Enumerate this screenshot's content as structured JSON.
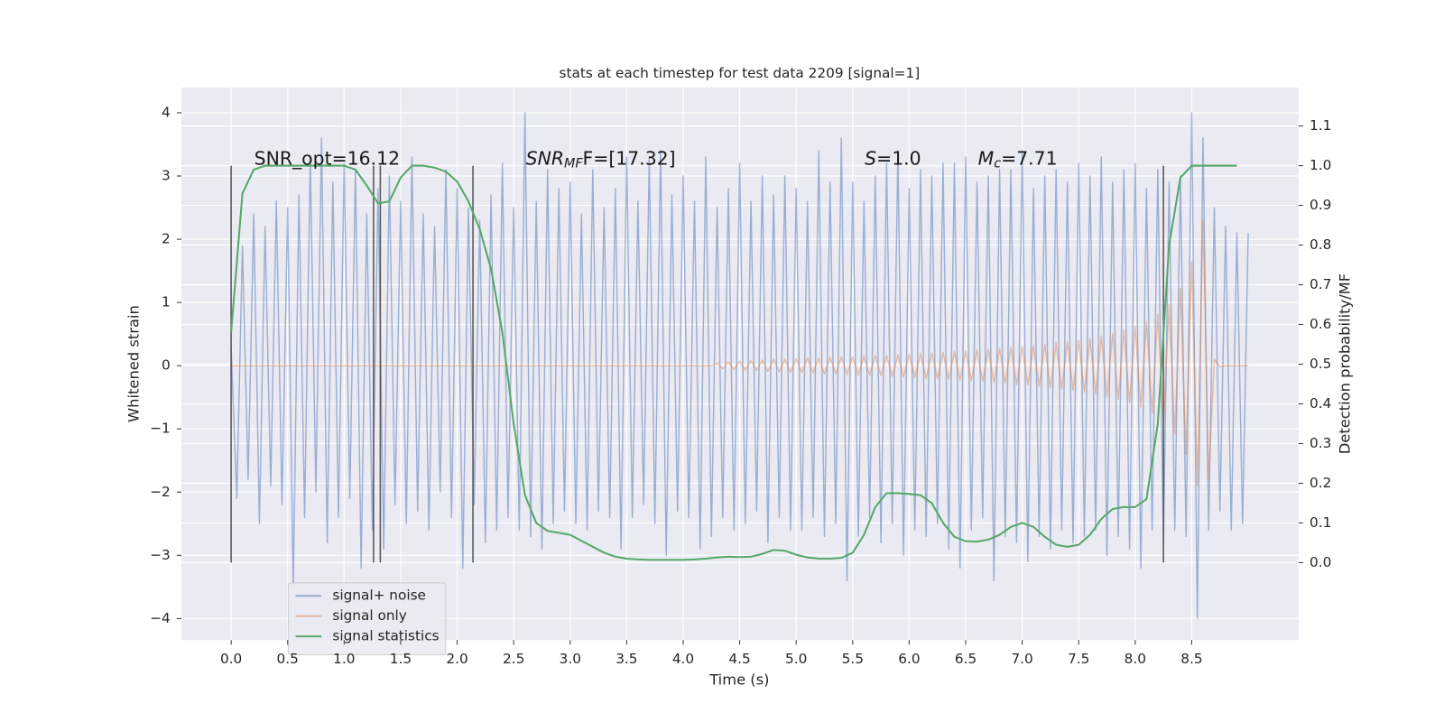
{
  "chart_data": {
    "type": "line",
    "title": "stats at each timestep for test data 2209 [signal=1]",
    "xlabel": "Time (s)",
    "ylabel": "Whitened strain",
    "y2label": "Detection probability/MF",
    "xlim": [
      -0.44,
      9.445
    ],
    "ylim": [
      -4.34,
      4.4
    ],
    "y2lim": [
      -0.195,
      1.197
    ],
    "xticks": [
      {
        "value": 0,
        "label": "0.0"
      },
      0.5,
      {
        "value": 1,
        "label": "1.0"
      },
      1.5,
      {
        "value": 2,
        "label": "2.0"
      },
      2.5,
      {
        "value": 3,
        "label": "3.0"
      },
      3.5,
      {
        "value": 4,
        "label": "4.0"
      },
      4.5,
      {
        "value": 5,
        "label": "5.0"
      },
      5.5,
      {
        "value": 6,
        "label": "6.0"
      },
      6.5,
      {
        "value": 7,
        "label": "7.0"
      },
      7.5,
      {
        "value": 8,
        "label": "8.0"
      },
      8.5
    ],
    "yticks": [
      {
        "value": -4,
        "label": "−4"
      },
      {
        "value": -3,
        "label": "−3"
      },
      {
        "value": -2,
        "label": "−2"
      },
      {
        "value": -1,
        "label": "−1"
      },
      0,
      1,
      2,
      3,
      4
    ],
    "y2ticks": [
      {
        "value": 0,
        "label": "0.0"
      },
      0.1,
      0.2,
      0.3,
      0.4,
      0.5,
      0.6,
      0.7,
      0.8,
      0.9,
      {
        "value": 1,
        "label": "1.0"
      },
      1.1
    ],
    "grid": true,
    "legend": "lower left",
    "series": [
      {
        "name": "signal+ noise",
        "color": "#4c72b0",
        "opacity": 0.5,
        "x": [
          0,
          0.05,
          0.1,
          0.15,
          0.2,
          0.25,
          0.3,
          0.35,
          0.4,
          0.45,
          0.5,
          0.55,
          0.6,
          0.65,
          0.7,
          0.75,
          0.8,
          0.85,
          0.9,
          0.95,
          1,
          1.05,
          1.1,
          1.15,
          1.2,
          1.25,
          1.3,
          1.35,
          1.4,
          1.45,
          1.5,
          1.55,
          1.6,
          1.65,
          1.7,
          1.75,
          1.8,
          1.85,
          1.9,
          1.95,
          2,
          2.05,
          2.1,
          2.15,
          2.2,
          2.25,
          2.3,
          2.35,
          2.4,
          2.45,
          2.5,
          2.55,
          2.6,
          2.65,
          2.7,
          2.75,
          2.8,
          2.85,
          2.9,
          2.95,
          3,
          3.05,
          3.1,
          3.15,
          3.2,
          3.25,
          3.3,
          3.35,
          3.4,
          3.45,
          3.5,
          3.55,
          3.6,
          3.65,
          3.7,
          3.75,
          3.8,
          3.85,
          3.9,
          3.95,
          4,
          4.05,
          4.1,
          4.15,
          4.2,
          4.25,
          4.3,
          4.35,
          4.4,
          4.45,
          4.5,
          4.55,
          4.6,
          4.65,
          4.7,
          4.75,
          4.8,
          4.85,
          4.9,
          4.95,
          5,
          5.05,
          5.1,
          5.15,
          5.2,
          5.25,
          5.3,
          5.35,
          5.4,
          5.45,
          5.5,
          5.55,
          5.6,
          5.65,
          5.7,
          5.75,
          5.8,
          5.85,
          5.9,
          5.95,
          6,
          6.05,
          6.1,
          6.15,
          6.2,
          6.25,
          6.3,
          6.35,
          6.4,
          6.45,
          6.5,
          6.55,
          6.6,
          6.65,
          6.7,
          6.75,
          6.8,
          6.85,
          6.9,
          6.95,
          7,
          7.05,
          7.1,
          7.15,
          7.2,
          7.25,
          7.3,
          7.35,
          7.4,
          7.45,
          7.5,
          7.55,
          7.6,
          7.65,
          7.7,
          7.75,
          7.8,
          7.85,
          7.9,
          7.95,
          8,
          8.05,
          8.1,
          8.15,
          8.2,
          8.25,
          8.3,
          8.35,
          8.4,
          8.45,
          8.5,
          8.55,
          8.6,
          8.65,
          8.7,
          8.75,
          8.8,
          8.85,
          8.9,
          8.95,
          9
        ],
        "values": [
          0.3,
          -2.1,
          1.9,
          -1.8,
          2.4,
          -2.5,
          2.2,
          -1.9,
          2.6,
          -2.2,
          2.5,
          -3.5,
          2.7,
          -2.4,
          3.3,
          -2.0,
          3.6,
          -2.8,
          2.9,
          -2.4,
          3.2,
          -2.1,
          3.1,
          -3.2,
          2.4,
          -2.6,
          2.8,
          -2.9,
          3.0,
          -2.2,
          2.6,
          -2.5,
          3.3,
          -2.3,
          2.4,
          -2.6,
          2.2,
          -2.0,
          3.1,
          -2.4,
          2.8,
          -3.2,
          2.5,
          -2.2,
          2.3,
          -2.8,
          2.7,
          -2.6,
          3.2,
          -2.4,
          2.5,
          -2.6,
          4.0,
          -2.7,
          2.6,
          -2.9,
          3.1,
          -2.5,
          2.8,
          -2.3,
          2.9,
          -2.5,
          2.4,
          -2.6,
          3.1,
          -2.3,
          2.5,
          -2.4,
          2.8,
          -2.9,
          3.3,
          -2.4,
          2.6,
          -2.2,
          3.3,
          -2.5,
          3.4,
          -3.0,
          2.7,
          -2.3,
          3.0,
          -2.4,
          2.6,
          -2.9,
          3.3,
          -2.7,
          2.5,
          -2.4,
          2.8,
          -2.6,
          3.2,
          -2.5,
          2.6,
          -2.3,
          3.0,
          -2.8,
          2.7,
          -2.4,
          3.0,
          -2.6,
          2.8,
          -2.6,
          2.6,
          -2.4,
          3.4,
          -2.7,
          2.9,
          -2.5,
          3.6,
          -3.4,
          2.9,
          -2.7,
          2.6,
          -2.4,
          3.0,
          -2.8,
          3.2,
          -2.5,
          3.4,
          -3.0,
          2.8,
          -2.6,
          3.1,
          -2.7,
          3.0,
          -2.5,
          3.2,
          -2.9,
          3.2,
          -3.2,
          3.3,
          -2.6,
          2.9,
          -2.4,
          3.0,
          -3.4,
          3.1,
          -2.7,
          3.1,
          -2.8,
          3.4,
          -3.1,
          2.8,
          -2.7,
          3.0,
          -2.9,
          3.1,
          -2.6,
          2.9,
          -2.8,
          3.2,
          -2.7,
          3.0,
          -2.6,
          3.3,
          -3.0,
          2.9,
          -2.7,
          3.1,
          -2.9,
          3.2,
          -3.2,
          2.8,
          -2.6,
          3.1,
          -2.8,
          2.9,
          -2.6,
          3.0,
          -2.7,
          4.0,
          -4.0,
          3.6,
          -2.6,
          2.5,
          -2.3,
          2.2,
          -2.6,
          2.1,
          -2.5,
          2.1
        ]
      },
      {
        "name": "signal only",
        "color": "#dd8452",
        "opacity": 0.5,
        "x": [
          0,
          0.05,
          0.1,
          0.15,
          0.2,
          0.25,
          0.3,
          0.35,
          0.4,
          0.45,
          0.5,
          0.55,
          0.6,
          0.65,
          0.7,
          0.75,
          0.8,
          0.85,
          0.9,
          0.95,
          1,
          1.05,
          1.1,
          1.15,
          1.2,
          1.25,
          1.3,
          1.35,
          1.4,
          1.45,
          1.5,
          1.55,
          1.6,
          1.65,
          1.7,
          1.75,
          1.8,
          1.85,
          1.9,
          1.95,
          2,
          2.05,
          2.1,
          2.15,
          2.2,
          2.25,
          2.3,
          2.35,
          2.4,
          2.45,
          2.5,
          2.55,
          2.6,
          2.65,
          2.7,
          2.75,
          2.8,
          2.85,
          2.9,
          2.95,
          3,
          3.05,
          3.1,
          3.15,
          3.2,
          3.25,
          3.3,
          3.35,
          3.4,
          3.45,
          3.5,
          3.55,
          3.6,
          3.65,
          3.7,
          3.75,
          3.8,
          3.85,
          3.9,
          3.95,
          4,
          4.05,
          4.1,
          4.15,
          4.2,
          4.25,
          4.3,
          4.35,
          4.4,
          4.45,
          4.5,
          4.55,
          4.6,
          4.65,
          4.7,
          4.75,
          4.8,
          4.85,
          4.9,
          4.95,
          5,
          5.05,
          5.1,
          5.15,
          5.2,
          5.25,
          5.3,
          5.35,
          5.4,
          5.45,
          5.5,
          5.55,
          5.6,
          5.65,
          5.7,
          5.75,
          5.8,
          5.85,
          5.9,
          5.95,
          6,
          6.05,
          6.1,
          6.15,
          6.2,
          6.25,
          6.3,
          6.35,
          6.4,
          6.45,
          6.5,
          6.55,
          6.6,
          6.65,
          6.7,
          6.75,
          6.8,
          6.85,
          6.9,
          6.95,
          7,
          7.05,
          7.1,
          7.15,
          7.2,
          7.25,
          7.3,
          7.35,
          7.4,
          7.45,
          7.5,
          7.55,
          7.6,
          7.65,
          7.7,
          7.75,
          7.8,
          7.85,
          7.9,
          7.95,
          8,
          8.05,
          8.1,
          8.15,
          8.2,
          8.25,
          8.3,
          8.35,
          8.4,
          8.45,
          8.5,
          8.55,
          8.6,
          8.65,
          8.7,
          8.75,
          8.8,
          8.85,
          8.9,
          8.95,
          9
        ],
        "values": [
          0,
          0,
          0,
          0,
          0,
          0,
          0,
          0,
          0,
          0,
          0,
          0,
          0,
          0,
          0,
          0,
          0,
          0,
          0,
          0,
          0,
          0,
          0,
          0,
          0,
          0,
          0,
          0,
          0,
          0,
          0,
          0,
          0,
          0,
          0,
          0,
          0,
          0,
          0,
          0,
          0,
          0,
          0,
          0,
          0,
          0,
          0,
          0,
          0,
          0,
          0,
          0,
          0,
          0,
          0,
          0,
          0,
          0,
          0,
          0,
          0,
          0,
          0,
          0,
          0,
          0,
          0,
          0,
          0,
          0,
          0,
          0,
          0,
          0,
          0,
          0,
          0,
          0,
          0,
          0,
          0,
          0,
          0,
          0,
          0,
          0,
          0.04,
          -0.05,
          0.06,
          -0.06,
          0.07,
          -0.07,
          0.08,
          -0.08,
          0.09,
          -0.09,
          0.1,
          -0.1,
          0.1,
          -0.11,
          0.11,
          -0.11,
          0.12,
          -0.12,
          0.12,
          -0.13,
          0.13,
          -0.13,
          0.14,
          -0.14,
          0.14,
          -0.15,
          0.15,
          -0.15,
          0.16,
          -0.16,
          0.16,
          -0.17,
          0.17,
          -0.18,
          0.18,
          -0.19,
          0.19,
          -0.2,
          0.2,
          -0.21,
          0.21,
          -0.22,
          0.22,
          -0.23,
          0.23,
          -0.24,
          0.25,
          -0.25,
          0.26,
          -0.27,
          0.27,
          -0.28,
          0.29,
          -0.3,
          0.3,
          -0.31,
          0.32,
          -0.33,
          0.34,
          -0.35,
          0.36,
          -0.37,
          0.38,
          -0.39,
          0.4,
          -0.42,
          0.43,
          -0.45,
          0.47,
          -0.49,
          0.51,
          -0.53,
          0.56,
          -0.59,
          0.62,
          -0.66,
          0.7,
          -0.75,
          0.81,
          -0.88,
          0.97,
          -1.08,
          1.22,
          -1.4,
          1.65,
          -1.9,
          2.3,
          -1.8,
          0.1,
          -0.02,
          0,
          0,
          0,
          0,
          0
        ]
      },
      {
        "name": "signal statistics",
        "color": "#55a868",
        "opacity": 1,
        "axis": "y2",
        "x": [
          0,
          0.1,
          0.2,
          0.3,
          0.4,
          0.5,
          0.6,
          0.7,
          0.8,
          0.9,
          1,
          1.1,
          1.2,
          1.3,
          1.4,
          1.5,
          1.6,
          1.7,
          1.8,
          1.9,
          2,
          2.1,
          2.2,
          2.3,
          2.4,
          2.5,
          2.6,
          2.7,
          2.8,
          2.9,
          3,
          3.1,
          3.2,
          3.3,
          3.4,
          3.5,
          3.6,
          3.7,
          3.8,
          3.9,
          4,
          4.1,
          4.2,
          4.3,
          4.4,
          4.5,
          4.6,
          4.7,
          4.8,
          4.9,
          5,
          5.1,
          5.2,
          5.3,
          5.4,
          5.5,
          5.6,
          5.7,
          5.8,
          5.9,
          6,
          6.1,
          6.2,
          6.3,
          6.4,
          6.5,
          6.6,
          6.7,
          6.8,
          6.9,
          7,
          7.1,
          7.2,
          7.3,
          7.4,
          7.5,
          7.6,
          7.7,
          7.8,
          7.9,
          8,
          8.1,
          8.2,
          8.3,
          8.4,
          8.5,
          8.6,
          8.7,
          8.8,
          8.9
        ],
        "values": [
          0.58,
          0.93,
          0.99,
          1,
          1,
          1,
          1,
          1,
          1,
          1,
          1,
          0.99,
          0.95,
          0.905,
          0.91,
          0.97,
          1,
          1,
          0.995,
          0.985,
          0.96,
          0.91,
          0.84,
          0.74,
          0.58,
          0.35,
          0.17,
          0.1,
          0.08,
          0.075,
          0.07,
          0.055,
          0.04,
          0.025,
          0.015,
          0.01,
          0.008,
          0.007,
          0.007,
          0.007,
          0.007,
          0.008,
          0.01,
          0.013,
          0.015,
          0.014,
          0.015,
          0.022,
          0.032,
          0.03,
          0.02,
          0.013,
          0.01,
          0.01,
          0.012,
          0.025,
          0.07,
          0.14,
          0.175,
          0.175,
          0.173,
          0.17,
          0.15,
          0.1,
          0.065,
          0.054,
          0.053,
          0.058,
          0.07,
          0.09,
          0.1,
          0.09,
          0.065,
          0.045,
          0.04,
          0.045,
          0.07,
          0.11,
          0.135,
          0.14,
          0.14,
          0.16,
          0.35,
          0.8,
          0.97,
          1,
          1,
          1,
          1,
          1
        ]
      }
    ],
    "vlines": {
      "color": "#555555",
      "x": [
        0,
        1.26,
        1.32,
        2.14,
        8.25
      ],
      "y2": [
        0,
        1
      ]
    },
    "annotations": [
      {
        "text": "SNR_opt=16.12"
      },
      {
        "base": "SNR",
        "sub": "MF",
        "rest": "F=[17.32]"
      },
      {
        "base": "S",
        "rest": "=1.0"
      },
      {
        "base": "M",
        "sub": "c",
        "rest": "=7.71"
      }
    ]
  }
}
